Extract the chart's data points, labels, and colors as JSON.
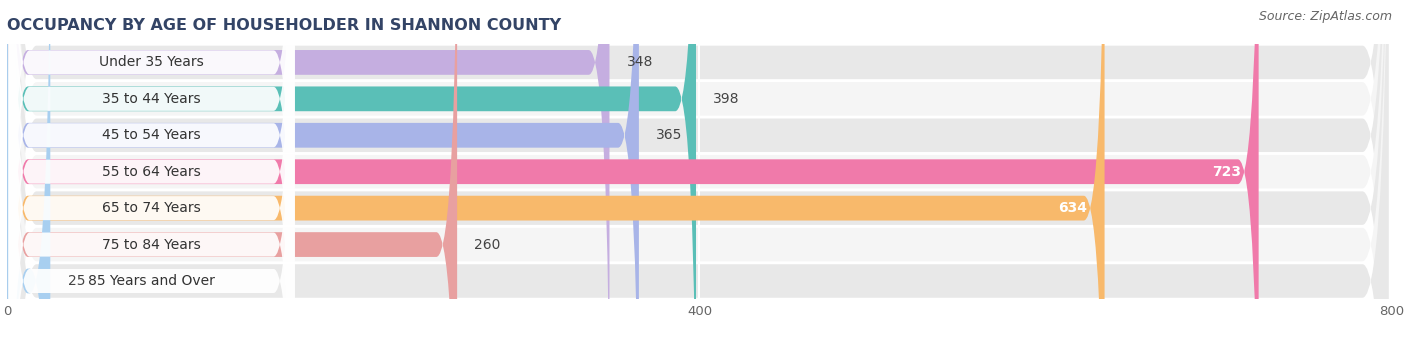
{
  "title": "OCCUPANCY BY AGE OF HOUSEHOLDER IN SHANNON COUNTY",
  "source": "Source: ZipAtlas.com",
  "categories": [
    "Under 35 Years",
    "35 to 44 Years",
    "45 to 54 Years",
    "55 to 64 Years",
    "65 to 74 Years",
    "75 to 84 Years",
    "85 Years and Over"
  ],
  "values": [
    348,
    398,
    365,
    723,
    634,
    260,
    25
  ],
  "bar_colors": [
    "#c5aee0",
    "#5abfb7",
    "#a8b4e8",
    "#f07aaa",
    "#f8b96b",
    "#e8a0a0",
    "#a8cff0"
  ],
  "xlim": [
    0,
    800
  ],
  "xticks": [
    0,
    400,
    800
  ],
  "title_fontsize": 11.5,
  "source_fontsize": 9,
  "label_fontsize": 10,
  "value_fontsize": 10,
  "bar_height": 0.68,
  "row_bg": "#e8e8e8",
  "row_bg_alt": "#f5f5f5"
}
